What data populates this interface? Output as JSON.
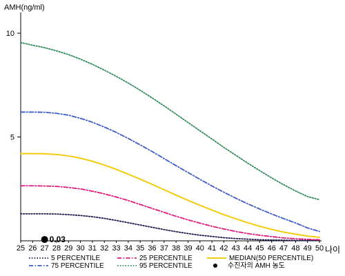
{
  "chart_data": {
    "type": "line",
    "ylabel": "AMH(ng/ml)",
    "xlabel": "나이",
    "x": [
      25,
      26,
      27,
      28,
      29,
      30,
      31,
      32,
      33,
      34,
      35,
      36,
      37,
      38,
      39,
      40,
      41,
      42,
      43,
      44,
      45,
      46,
      47,
      48,
      49,
      50
    ],
    "xlim": [
      25,
      50
    ],
    "ylim": [
      0,
      11
    ],
    "yticks": [
      5,
      10
    ],
    "grid": false,
    "series": [
      {
        "name": "5 PERCENTILE",
        "color": "#1a1a4e",
        "dash": "dotted",
        "values": [
          1.3,
          1.3,
          1.3,
          1.29,
          1.26,
          1.22,
          1.16,
          1.08,
          0.98,
          0.87,
          0.76,
          0.65,
          0.54,
          0.44,
          0.35,
          0.27,
          0.21,
          0.15,
          0.11,
          0.08,
          0.05,
          0.04,
          0.03,
          0.02,
          0.02,
          0.02
        ]
      },
      {
        "name": "25 PERCENTILE",
        "color": "#e0187a",
        "dash": "dashdot",
        "values": [
          2.65,
          2.65,
          2.64,
          2.62,
          2.57,
          2.5,
          2.39,
          2.26,
          2.11,
          1.94,
          1.75,
          1.56,
          1.37,
          1.18,
          1.01,
          0.85,
          0.7,
          0.57,
          0.45,
          0.35,
          0.27,
          0.2,
          0.14,
          0.1,
          0.07,
          0.05
        ]
      },
      {
        "name": "75 PERCENTILE",
        "color": "#3b5bc8",
        "dash": "dashdot",
        "values": [
          6.2,
          6.2,
          6.19,
          6.14,
          6.05,
          5.9,
          5.71,
          5.48,
          5.22,
          4.93,
          4.62,
          4.3,
          3.96,
          3.62,
          3.29,
          2.96,
          2.64,
          2.34,
          2.05,
          1.78,
          1.53,
          1.29,
          1.07,
          0.86,
          0.62,
          0.45
        ]
      },
      {
        "name": "95 PERCENTILE",
        "color": "#2e8b57",
        "dash": "dotted",
        "values": [
          9.55,
          9.42,
          9.3,
          9.15,
          8.97,
          8.75,
          8.5,
          8.22,
          7.92,
          7.6,
          7.25,
          6.88,
          6.5,
          6.1,
          5.7,
          5.3,
          4.9,
          4.5,
          4.12,
          3.74,
          3.38,
          3.03,
          2.7,
          2.4,
          2.13,
          1.98
        ]
      },
      {
        "name": "MEDIAN(50 PERCENTILE)",
        "color": "#f2cc0c",
        "dash": "solid",
        "values": [
          4.2,
          4.2,
          4.19,
          4.16,
          4.09,
          3.98,
          3.83,
          3.65,
          3.44,
          3.21,
          2.97,
          2.72,
          2.46,
          2.2,
          1.95,
          1.71,
          1.48,
          1.26,
          1.06,
          0.87,
          0.7,
          0.55,
          0.42,
          0.32,
          0.23,
          0.17
        ]
      }
    ],
    "point": {
      "name": "수진자의 AMH 농도",
      "x": 27,
      "y": 0.03,
      "label": "0.03",
      "color": "#000000"
    },
    "legend_position": "bottom"
  }
}
